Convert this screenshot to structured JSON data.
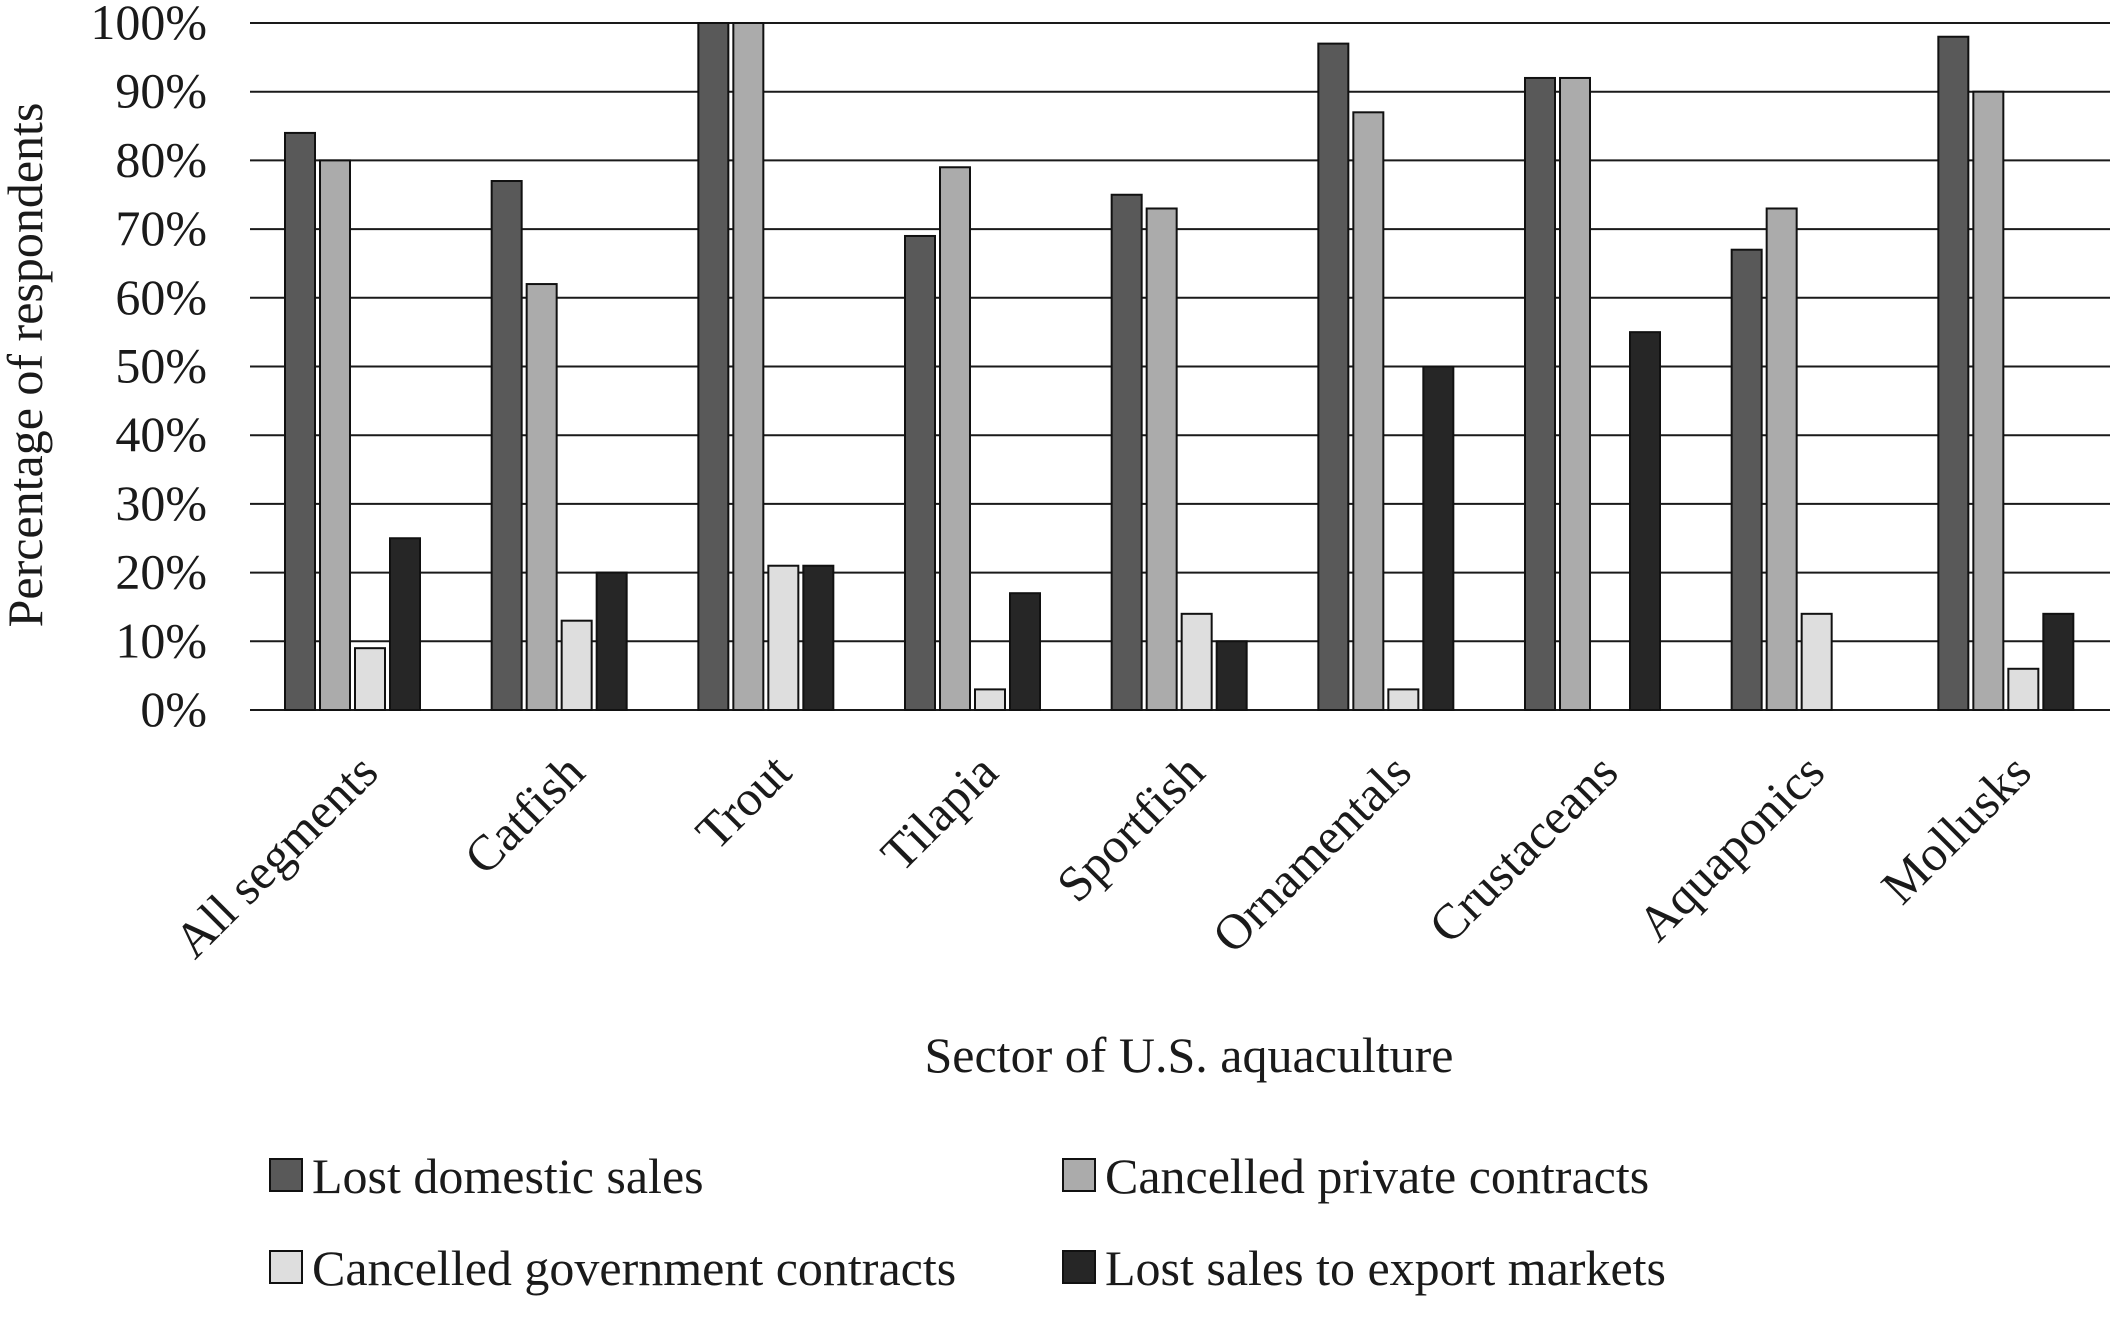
{
  "chart_data": {
    "type": "bar",
    "title": "",
    "xlabel": "Sector of U.S. aquaculture",
    "ylabel": "Percentage of respondents",
    "ylim": [
      0,
      100
    ],
    "y_ticks": [
      "0%",
      "10%",
      "20%",
      "30%",
      "40%",
      "50%",
      "60%",
      "70%",
      "80%",
      "90%",
      "100%"
    ],
    "y_tick_values": [
      0,
      10,
      20,
      30,
      40,
      50,
      60,
      70,
      80,
      90,
      100
    ],
    "grid": true,
    "legend_position": "bottom",
    "categories": [
      "All segments",
      "Catfish",
      "Trout",
      "Tilapia",
      "Sportfish",
      "Ornamentals",
      "Crustaceans",
      "Aquaponics",
      "Mollusks"
    ],
    "series": [
      {
        "name": "Lost domestic sales",
        "color": "#595959",
        "values": [
          84,
          77,
          100,
          69,
          75,
          97,
          92,
          67,
          98
        ]
      },
      {
        "name": "Cancelled private contracts",
        "color": "#ababab",
        "values": [
          80,
          62,
          100,
          79,
          73,
          87,
          92,
          73,
          90
        ]
      },
      {
        "name": "Cancelled government contracts",
        "color": "#dedede",
        "values": [
          9,
          13,
          21,
          3,
          14,
          3,
          0,
          14,
          6
        ]
      },
      {
        "name": "Lost sales to export markets",
        "color": "#262626",
        "values": [
          25,
          20,
          21,
          17,
          10,
          50,
          55,
          0,
          14
        ]
      }
    ]
  }
}
